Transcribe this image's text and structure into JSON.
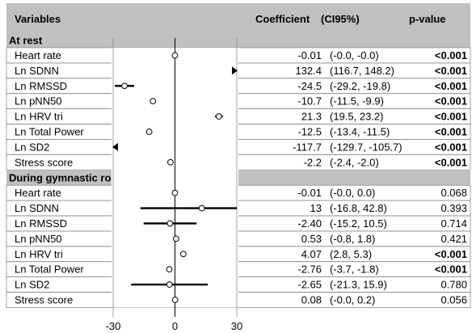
{
  "table": {
    "col_variables": "Variables",
    "col_coefficient": "Coefficient",
    "col_ci": "(CI95%)",
    "col_pvalue": "p-value"
  },
  "chart_data": {
    "type": "forest",
    "xlim": [
      -30,
      30
    ],
    "xticks": [
      "-30",
      "0",
      "30"
    ],
    "reference_line": 0,
    "sections": [
      {
        "title": "At rest",
        "rows": [
          {
            "label": "Heart rate",
            "coef_text": "-0.01",
            "ci_text": "(-0.0, -0.0)",
            "p_text": "<0.001",
            "p_bold": true,
            "point": -0.01,
            "lo": -0.0,
            "hi": -0.0
          },
          {
            "label": "Ln SDNN",
            "coef_text": "132.4",
            "ci_text": "(116.7, 148.2)",
            "p_text": "<0.001",
            "p_bold": true,
            "point": 132.4,
            "lo": 116.7,
            "hi": 148.2
          },
          {
            "label": "Ln RMSSD",
            "coef_text": "-24.5",
            "ci_text": "(-29.2, -19.8)",
            "p_text": "<0.001",
            "p_bold": true,
            "point": -24.5,
            "lo": -29.2,
            "hi": -19.8
          },
          {
            "label": "Ln pNN50",
            "coef_text": "-10.7",
            "ci_text": "(-11.5, -9.9)",
            "p_text": "<0.001",
            "p_bold": true,
            "point": -10.7,
            "lo": -11.5,
            "hi": -9.9
          },
          {
            "label": "Ln HRV tri",
            "coef_text": "21.3",
            "ci_text": "(19.5, 23.2)",
            "p_text": "<0.001",
            "p_bold": true,
            "point": 21.3,
            "lo": 19.5,
            "hi": 23.2
          },
          {
            "label": "Ln Total Power",
            "coef_text": "-12.5",
            "ci_text": "(-13.4, -11.5)",
            "p_text": "<0.001",
            "p_bold": true,
            "point": -12.5,
            "lo": -13.4,
            "hi": -11.5
          },
          {
            "label": "Ln SD2",
            "coef_text": "-117.7",
            "ci_text": "(-129.7, -105.7)",
            "p_text": "<0.001",
            "p_bold": true,
            "point": -117.7,
            "lo": -129.7,
            "hi": -105.7
          },
          {
            "label": "Stress score",
            "coef_text": "-2.2",
            "ci_text": "(-2.4, -2.0)",
            "p_text": "<0.001",
            "p_bold": true,
            "point": -2.2,
            "lo": -2.4,
            "hi": -2.0
          }
        ]
      },
      {
        "title": "During gymnastic routine training",
        "rows": [
          {
            "label": "Heart rate",
            "coef_text": "-0.01",
            "ci_text": "(-0.0, 0.0)",
            "p_text": "0.068",
            "p_bold": false,
            "point": -0.01,
            "lo": -0.0,
            "hi": 0.0
          },
          {
            "label": "Ln SDNN",
            "coef_text": "13",
            "ci_text": "(-16.8, 42.8)",
            "p_text": "0.393",
            "p_bold": false,
            "point": 13,
            "lo": -16.8,
            "hi": 42.8
          },
          {
            "label": "Ln RMSSD",
            "coef_text": "-2.40",
            "ci_text": "(-15.2, 10.5)",
            "p_text": "0.714",
            "p_bold": false,
            "point": -2.4,
            "lo": -15.2,
            "hi": 10.5
          },
          {
            "label": "Ln pNN50",
            "coef_text": "0.53",
            "ci_text": "(-0.8, 1.8)",
            "p_text": "0.421",
            "p_bold": false,
            "point": 0.53,
            "lo": -0.8,
            "hi": 1.8
          },
          {
            "label": "Ln HRV tri",
            "coef_text": "4.07",
            "ci_text": "(2.8, 5.3)",
            "p_text": "<0.001",
            "p_bold": true,
            "point": 4.07,
            "lo": 2.8,
            "hi": 5.3
          },
          {
            "label": "Ln Total Power",
            "coef_text": "-2.76",
            "ci_text": "(-3.7, -1.8)",
            "p_text": "<0.001",
            "p_bold": true,
            "point": -2.76,
            "lo": -3.7,
            "hi": -1.8
          },
          {
            "label": "Ln SD2",
            "coef_text": "-2.65",
            "ci_text": "(-21.3, 15.9)",
            "p_text": "0.780",
            "p_bold": false,
            "point": -2.65,
            "lo": -21.3,
            "hi": 15.9
          },
          {
            "label": "Stress score",
            "coef_text": "0.08",
            "ci_text": "(-0.0, 0.2)",
            "p_text": "0.056",
            "p_bold": false,
            "point": 0.08,
            "lo": -0.0,
            "hi": 0.2
          }
        ]
      }
    ]
  }
}
